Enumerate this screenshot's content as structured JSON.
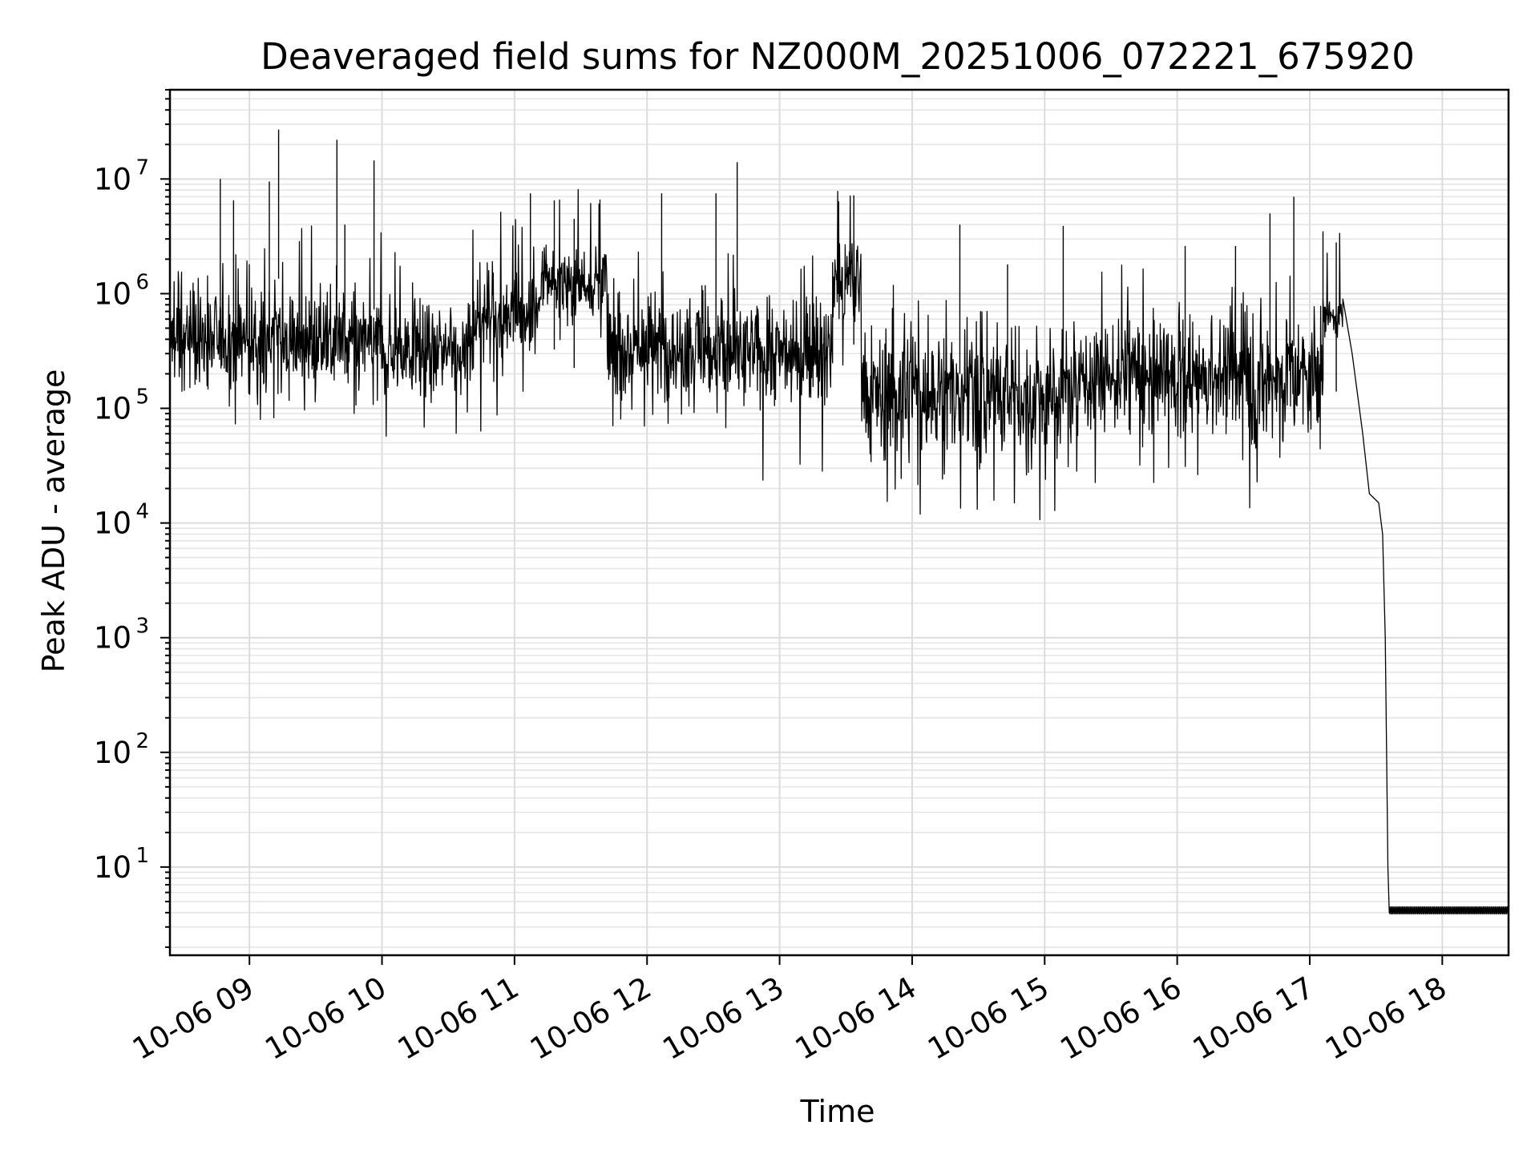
{
  "chart_data": {
    "type": "line",
    "title": "Deaveraged field sums for NZ000M_20251006_072221_675920",
    "xlabel": "Time",
    "ylabel": "Peak ADU - average",
    "yscale": "log",
    "xlim_hours": [
      8.4,
      18.5
    ],
    "ylim": [
      1.7,
      60000000
    ],
    "x_ticks": [
      "10-06 09",
      "10-06 10",
      "10-06 11",
      "10-06 12",
      "10-06 13",
      "10-06 14",
      "10-06 15",
      "10-06 16",
      "10-06 17",
      "10-06 18"
    ],
    "x_tick_hours": [
      9,
      10,
      11,
      12,
      13,
      14,
      15,
      16,
      17,
      18
    ],
    "y_ticks": [
      {
        "base": "10",
        "exp": "1",
        "value": 10
      },
      {
        "base": "10",
        "exp": "2",
        "value": 100
      },
      {
        "base": "10",
        "exp": "3",
        "value": 1000
      },
      {
        "base": "10",
        "exp": "4",
        "value": 10000
      },
      {
        "base": "10",
        "exp": "5",
        "value": 100000
      },
      {
        "base": "10",
        "exp": "6",
        "value": 1000000
      },
      {
        "base": "10",
        "exp": "7",
        "value": 10000000
      }
    ],
    "grid": true,
    "series": [
      {
        "name": "Peak ADU - average",
        "color": "#000000",
        "segments": [
          {
            "t0": 8.4,
            "t1": 9.3,
            "center": 400000,
            "log_noise": 0.3
          },
          {
            "t0": 9.3,
            "t1": 10.0,
            "center": 380000,
            "log_noise": 0.3
          },
          {
            "t0": 10.0,
            "t1": 10.7,
            "center": 320000,
            "log_noise": 0.28
          },
          {
            "t0": 10.7,
            "t1": 11.2,
            "center": 650000,
            "log_noise": 0.25
          },
          {
            "t0": 11.2,
            "t1": 11.7,
            "center": 1300000,
            "log_noise": 0.22
          },
          {
            "t0": 11.7,
            "t1": 12.5,
            "center": 350000,
            "log_noise": 0.32
          },
          {
            "t0": 12.5,
            "t1": 13.4,
            "center": 300000,
            "log_noise": 0.3
          },
          {
            "t0": 13.4,
            "t1": 13.62,
            "center": 1200000,
            "log_noise": 0.3
          },
          {
            "t0": 13.62,
            "t1": 15.2,
            "center": 130000,
            "log_noise": 0.4
          },
          {
            "t0": 15.2,
            "t1": 16.4,
            "center": 190000,
            "log_noise": 0.32
          },
          {
            "t0": 16.4,
            "t1": 17.1,
            "center": 180000,
            "log_noise": 0.38
          },
          {
            "t0": 17.1,
            "t1": 17.25,
            "center": 650000,
            "log_noise": 0.12
          }
        ],
        "decline": [
          {
            "t": 17.25,
            "v": 900000
          },
          {
            "t": 17.32,
            "v": 300000
          },
          {
            "t": 17.4,
            "v": 60000
          },
          {
            "t": 17.45,
            "v": 18000
          },
          {
            "t": 17.52,
            "v": 15000
          },
          {
            "t": 17.55,
            "v": 8000
          },
          {
            "t": 17.57,
            "v": 1000
          },
          {
            "t": 17.59,
            "v": 10
          },
          {
            "t": 17.6,
            "v": 4
          }
        ],
        "floor": {
          "t0": 17.6,
          "t1": 18.5,
          "low": 3.9,
          "high": 4.5
        },
        "spikes": [
          {
            "t": 8.78,
            "v": 10000000
          },
          {
            "t": 8.88,
            "v": 6500000
          },
          {
            "t": 9.15,
            "v": 9500000
          },
          {
            "t": 9.22,
            "v": 27000000
          },
          {
            "t": 9.66,
            "v": 22000000
          },
          {
            "t": 9.72,
            "v": 4000000
          },
          {
            "t": 9.94,
            "v": 14500000
          },
          {
            "t": 11.12,
            "v": 7500000
          },
          {
            "t": 11.3,
            "v": 6500000
          },
          {
            "t": 11.45,
            "v": 4500000
          },
          {
            "t": 12.11,
            "v": 7500000
          },
          {
            "t": 12.52,
            "v": 7500000
          },
          {
            "t": 12.68,
            "v": 14000000
          },
          {
            "t": 13.56,
            "v": 7200000
          },
          {
            "t": 14.36,
            "v": 4000000
          },
          {
            "t": 14.72,
            "v": 1800000
          },
          {
            "t": 15.14,
            "v": 3900000
          },
          {
            "t": 16.06,
            "v": 2600000
          },
          {
            "t": 16.44,
            "v": 2600000
          },
          {
            "t": 16.7,
            "v": 5000000
          },
          {
            "t": 16.88,
            "v": 7000000
          },
          {
            "t": 17.1,
            "v": 3500000
          },
          {
            "t": 17.2,
            "v": 2800000
          }
        ]
      }
    ]
  }
}
